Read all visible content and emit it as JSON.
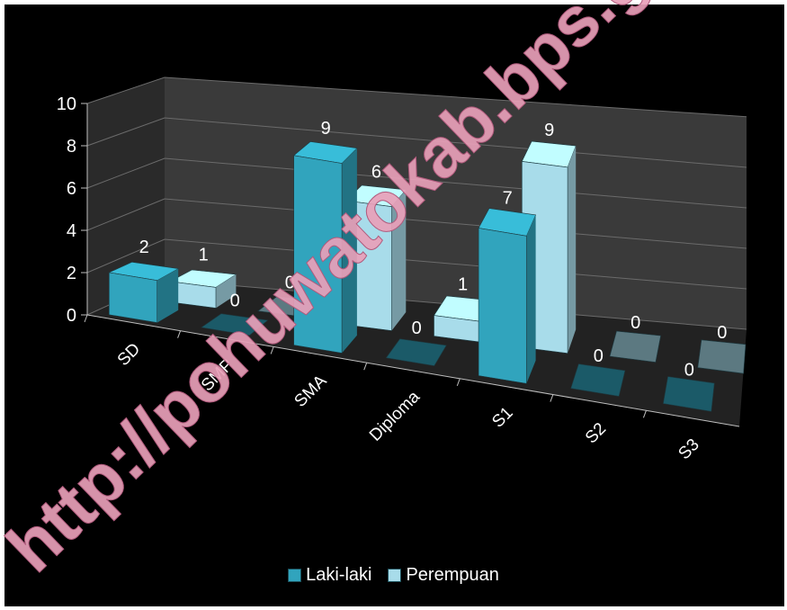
{
  "chart_data": {
    "type": "bar",
    "categories": [
      "SD",
      "SMP",
      "SMA",
      "Diploma",
      "S1",
      "S2",
      "S3"
    ],
    "series": [
      {
        "name": "Laki-laki",
        "values": [
          2,
          0,
          9,
          0,
          7,
          0,
          0
        ],
        "color": "#31a4bd"
      },
      {
        "name": "Perempuan",
        "values": [
          1,
          0,
          6,
          1,
          9,
          0,
          0
        ],
        "color": "#a8dcea"
      }
    ],
    "data_labels": {
      "Laki-laki": [
        "2",
        "0",
        "9",
        "0",
        "7",
        "0",
        "0"
      ],
      "Perempuan": [
        "1",
        "0",
        "6",
        "1",
        "9",
        "0",
        "0"
      ]
    },
    "ylim": [
      0,
      10
    ],
    "yticks": [
      "0",
      "2",
      "4",
      "6",
      "8",
      "10"
    ],
    "grid": true,
    "legend_position": "bottom",
    "style": "3d-clustered-column",
    "background": "#000000"
  },
  "watermark": {
    "text": "http://pohuwatokab.bps.go.id",
    "color": "#e8a0b8"
  }
}
